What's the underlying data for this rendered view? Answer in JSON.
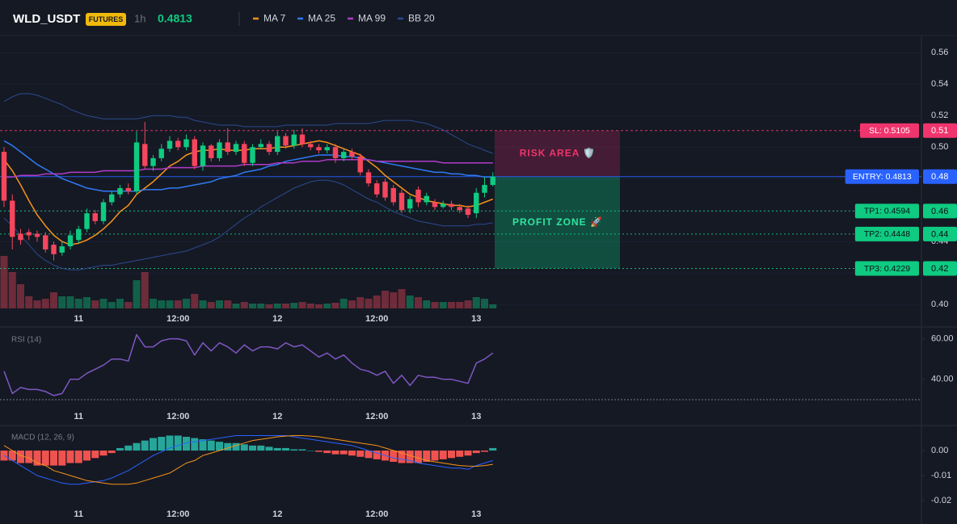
{
  "chart_data": [
    {
      "type": "candlestick",
      "title": "WLD_USDT",
      "badge": "FUTURES",
      "interval": "1h",
      "last_price": 0.4813,
      "categories": [
        null,
        null,
        null,
        null,
        null,
        null,
        null,
        null,
        null,
        "11",
        null,
        null,
        null,
        null,
        null,
        null,
        null,
        null,
        null,
        null,
        null,
        "12:00",
        null,
        null,
        null,
        null,
        null,
        null,
        null,
        null,
        null,
        null,
        null,
        "12",
        null,
        null,
        null,
        null,
        null,
        null,
        null,
        null,
        null,
        null,
        null,
        "12:00",
        null,
        null,
        null,
        null,
        null,
        null,
        null,
        null,
        null,
        null,
        null,
        "13",
        null,
        null
      ],
      "open": [
        0.497,
        0.466,
        0.445,
        0.446,
        0.445,
        0.444,
        0.438,
        0.433,
        0.437,
        0.441,
        0.448,
        0.458,
        0.453,
        0.465,
        0.47,
        0.474,
        0.472,
        0.502,
        0.488,
        0.493,
        0.499,
        0.504,
        0.5,
        0.505,
        0.488,
        0.501,
        0.493,
        0.503,
        0.497,
        0.502,
        0.49,
        0.5,
        0.502,
        0.497,
        0.507,
        0.501,
        0.508,
        0.502,
        0.5,
        0.498,
        0.5,
        0.493,
        0.497,
        0.494,
        0.484,
        0.477,
        0.478,
        0.474,
        0.471,
        0.461,
        0.473,
        0.465,
        0.465,
        0.462,
        0.464,
        0.462,
        0.461,
        0.458,
        0.471,
        0.476
      ],
      "high": [
        0.5,
        0.47,
        0.448,
        0.448,
        0.447,
        0.446,
        0.44,
        0.44,
        0.447,
        0.45,
        0.461,
        0.46,
        0.467,
        0.472,
        0.476,
        0.477,
        0.51,
        0.516,
        0.495,
        0.502,
        0.507,
        0.506,
        0.508,
        0.507,
        0.503,
        0.502,
        0.505,
        0.512,
        0.504,
        0.504,
        0.502,
        0.505,
        0.504,
        0.51,
        0.509,
        0.511,
        0.512,
        0.504,
        0.502,
        0.502,
        0.502,
        0.499,
        0.499,
        0.496,
        0.486,
        0.479,
        0.48,
        0.476,
        0.473,
        0.469,
        0.475,
        0.471,
        0.467,
        0.466,
        0.466,
        0.464,
        0.463,
        0.474,
        0.481,
        0.484
      ],
      "low": [
        0.462,
        0.435,
        0.438,
        0.441,
        0.44,
        0.433,
        0.428,
        0.431,
        0.435,
        0.439,
        0.446,
        0.451,
        0.451,
        0.463,
        0.468,
        0.47,
        0.47,
        0.486,
        0.485,
        0.491,
        0.497,
        0.498,
        0.498,
        0.486,
        0.485,
        0.491,
        0.491,
        0.495,
        0.495,
        0.488,
        0.488,
        0.499,
        0.495,
        0.495,
        0.499,
        0.499,
        0.5,
        0.498,
        0.496,
        0.496,
        0.49,
        0.491,
        0.492,
        0.482,
        0.475,
        0.468,
        0.466,
        0.463,
        0.458,
        0.458,
        0.462,
        0.463,
        0.46,
        0.461,
        0.46,
        0.458,
        0.455,
        0.455,
        0.468,
        0.475
      ],
      "close": [
        0.466,
        0.443,
        0.441,
        0.444,
        0.443,
        0.435,
        0.432,
        0.437,
        0.444,
        0.448,
        0.458,
        0.453,
        0.465,
        0.47,
        0.474,
        0.472,
        0.503,
        0.488,
        0.493,
        0.499,
        0.504,
        0.5,
        0.505,
        0.488,
        0.501,
        0.493,
        0.503,
        0.497,
        0.502,
        0.49,
        0.5,
        0.502,
        0.497,
        0.507,
        0.501,
        0.508,
        0.502,
        0.5,
        0.498,
        0.5,
        0.493,
        0.497,
        0.494,
        0.484,
        0.477,
        0.47,
        0.468,
        0.465,
        0.46,
        0.467,
        0.465,
        0.469,
        0.462,
        0.464,
        0.462,
        0.46,
        0.457,
        0.471,
        0.476,
        0.4813
      ],
      "volume": [
        65,
        45,
        30,
        15,
        10,
        12,
        20,
        15,
        15,
        12,
        14,
        10,
        12,
        8,
        12,
        8,
        35,
        45,
        12,
        10,
        10,
        10,
        12,
        18,
        10,
        8,
        10,
        10,
        6,
        8,
        6,
        6,
        5,
        6,
        6,
        7,
        8,
        6,
        5,
        6,
        7,
        12,
        10,
        14,
        12,
        16,
        22,
        20,
        24,
        16,
        14,
        10,
        8,
        8,
        8,
        8,
        10,
        14,
        12,
        5
      ],
      "up_color": "#0ecb81",
      "down_color": "#f6465d",
      "overlays": [
        {
          "name": "MA 7",
          "color": "#f7931a",
          "values": [
            0.492,
            0.485,
            0.476,
            0.466,
            0.457,
            0.45,
            0.444,
            0.44,
            0.438,
            0.439,
            0.441,
            0.444,
            0.448,
            0.453,
            0.459,
            0.463,
            0.47,
            0.474,
            0.478,
            0.483,
            0.488,
            0.491,
            0.495,
            0.497,
            0.498,
            0.498,
            0.499,
            0.498,
            0.498,
            0.498,
            0.499,
            0.499,
            0.499,
            0.5,
            0.5,
            0.501,
            0.502,
            0.503,
            0.504,
            0.503,
            0.501,
            0.499,
            0.497,
            0.495,
            0.491,
            0.487,
            0.482,
            0.478,
            0.474,
            0.47,
            0.468,
            0.466,
            0.465,
            0.464,
            0.463,
            0.463,
            0.462,
            0.463,
            0.465,
            0.467
          ]
        },
        {
          "name": "MA 25",
          "color": "#2f7bf5",
          "values": [
            0.504,
            0.501,
            0.497,
            0.493,
            0.489,
            0.486,
            0.483,
            0.48,
            0.478,
            0.476,
            0.474,
            0.473,
            0.472,
            0.472,
            0.472,
            0.472,
            0.472,
            0.473,
            0.473,
            0.473,
            0.474,
            0.474,
            0.475,
            0.476,
            0.477,
            0.478,
            0.48,
            0.481,
            0.482,
            0.484,
            0.485,
            0.486,
            0.488,
            0.489,
            0.491,
            0.492,
            0.493,
            0.494,
            0.495,
            0.495,
            0.495,
            0.494,
            0.494,
            0.493,
            0.492,
            0.491,
            0.49,
            0.489,
            0.488,
            0.487,
            0.486,
            0.485,
            0.484,
            0.484,
            0.483,
            0.483,
            0.482,
            0.482,
            0.481,
            0.481
          ]
        },
        {
          "name": "MA 99",
          "color": "#b03cc8",
          "values": [
            0.481,
            0.481,
            0.482,
            0.482,
            0.482,
            0.483,
            0.483,
            0.483,
            0.484,
            0.484,
            0.484,
            0.484,
            0.485,
            0.485,
            0.485,
            0.485,
            0.485,
            0.486,
            0.486,
            0.486,
            0.487,
            0.487,
            0.487,
            0.487,
            0.488,
            0.488,
            0.488,
            0.488,
            0.488,
            0.489,
            0.489,
            0.489,
            0.489,
            0.49,
            0.49,
            0.49,
            0.491,
            0.491,
            0.491,
            0.492,
            0.492,
            0.492,
            0.492,
            0.492,
            0.492,
            0.491,
            0.491,
            0.491,
            0.491,
            0.491,
            0.491,
            0.491,
            0.491,
            0.49,
            0.49,
            0.49,
            0.49,
            0.49,
            0.49,
            0.49
          ]
        },
        {
          "name": "BB 20",
          "color": "#2b4a8f",
          "upper": [
            0.529,
            0.532,
            0.534,
            0.534,
            0.533,
            0.531,
            0.529,
            0.527,
            0.524,
            0.522,
            0.52,
            0.519,
            0.518,
            0.518,
            0.518,
            0.518,
            0.518,
            0.519,
            0.52,
            0.52,
            0.52,
            0.519,
            0.519,
            0.517,
            0.516,
            0.515,
            0.514,
            0.514,
            0.514,
            0.513,
            0.513,
            0.513,
            0.513,
            0.513,
            0.514,
            0.514,
            0.514,
            0.514,
            0.514,
            0.514,
            0.515,
            0.515,
            0.515,
            0.515,
            0.515,
            0.516,
            0.517,
            0.517,
            0.517,
            0.517,
            0.516,
            0.515,
            0.513,
            0.511,
            0.508,
            0.505,
            0.502,
            0.5,
            0.498,
            0.496
          ],
          "lower": [
            0.455,
            0.45,
            0.444,
            0.438,
            0.432,
            0.428,
            0.425,
            0.423,
            0.422,
            0.422,
            0.423,
            0.424,
            0.425,
            0.425,
            0.426,
            0.427,
            0.428,
            0.429,
            0.43,
            0.431,
            0.432,
            0.433,
            0.434,
            0.436,
            0.438,
            0.44,
            0.443,
            0.447,
            0.451,
            0.455,
            0.458,
            0.462,
            0.465,
            0.468,
            0.471,
            0.474,
            0.476,
            0.478,
            0.479,
            0.479,
            0.478,
            0.476,
            0.473,
            0.47,
            0.467,
            0.465,
            0.462,
            0.459,
            0.457,
            0.455,
            0.453,
            0.452,
            0.451,
            0.45,
            0.45,
            0.45,
            0.45,
            0.451,
            0.451,
            0.452
          ]
        }
      ],
      "levels": [
        {
          "label": "SL: 0.5105",
          "value": 0.5105,
          "axis_label": "0.51",
          "color": "#f0356e",
          "style": "dashed"
        },
        {
          "label": "ENTRY: 0.4813",
          "value": 0.4813,
          "axis_label": "0.48",
          "color": "#2962ff",
          "style": "solid"
        },
        {
          "label": "TP1: 0.4594",
          "value": 0.4594,
          "axis_label": "0.46",
          "color": "#0ecb81",
          "style": "dotted"
        },
        {
          "label": "TP2: 0.4448",
          "value": 0.4448,
          "axis_label": "0.44",
          "color": "#0ecb81",
          "style": "dotted"
        },
        {
          "label": "TP3: 0.4229",
          "value": 0.4229,
          "axis_label": "0.42",
          "color": "#0ecb81",
          "style": "dotted"
        }
      ],
      "zones": [
        {
          "label": "RISK AREA 🛡️",
          "range": [
            0.5105,
            0.4813
          ],
          "color": "#b3265e",
          "text_color": "#f0356e"
        },
        {
          "label": "PROFIT ZONE 🚀",
          "range": [
            0.4813,
            0.4229
          ],
          "color": "#0ecb81",
          "text_color": "#2ee6a0"
        }
      ],
      "ylim": [
        0.396,
        0.5704
      ],
      "yticks": [
        {
          "value": 0.4,
          "label": "0.40"
        },
        0.42,
        0.44,
        0.46,
        0.48,
        {
          "value": 0.5,
          "label": "0.50"
        },
        0.52,
        0.54,
        0.56
      ],
      "grid": true
    },
    {
      "type": "line",
      "title": "RSI (14)",
      "color": "#7e57c2",
      "values": [
        44,
        33,
        36,
        35,
        35,
        34,
        32,
        33,
        40,
        40,
        43,
        45,
        47,
        50,
        50,
        49,
        62,
        56,
        56,
        59,
        60,
        60,
        59,
        52,
        58,
        54,
        58,
        56,
        53,
        57,
        54,
        56,
        56,
        55,
        58,
        56,
        57,
        54,
        51,
        53,
        50,
        52,
        48,
        45,
        44,
        42,
        44,
        38,
        42,
        37,
        42,
        41,
        41,
        40,
        40,
        39,
        38,
        48,
        50,
        53
      ],
      "hlines": [
        30
      ],
      "ylim": [
        26,
        65
      ],
      "yticks": [
        {
          "value": 40,
          "label": "40.00"
        },
        {
          "value": 60,
          "label": "60.00"
        }
      ]
    },
    {
      "type": "macd",
      "title": "MACD (12, 26, 9)",
      "histogram": [
        -0.004,
        -0.004,
        -0.005,
        -0.005,
        -0.006,
        -0.006,
        -0.006,
        -0.006,
        -0.005,
        -0.005,
        -0.004,
        -0.003,
        -0.002,
        -0.001,
        0.001,
        0.002,
        0.003,
        0.004,
        0.005,
        0.0055,
        0.006,
        0.006,
        0.0055,
        0.005,
        0.0045,
        0.004,
        0.0035,
        0.003,
        0.003,
        0.0025,
        0.002,
        0.002,
        0.0015,
        0.001,
        0.001,
        0.0005,
        0.0005,
        0,
        -0.0005,
        -0.001,
        -0.0015,
        -0.0015,
        -0.002,
        -0.0025,
        -0.003,
        -0.0035,
        -0.004,
        -0.0045,
        -0.005,
        -0.005,
        -0.005,
        -0.0045,
        -0.004,
        -0.0035,
        -0.003,
        -0.0025,
        -0.002,
        -0.001,
        -0.0005,
        0.001
      ],
      "macd": [
        -0.002,
        -0.004,
        -0.006,
        -0.008,
        -0.01,
        -0.011,
        -0.012,
        -0.013,
        -0.0135,
        -0.0135,
        -0.013,
        -0.0125,
        -0.012,
        -0.011,
        -0.0095,
        -0.008,
        -0.006,
        -0.004,
        -0.002,
        -0.0005,
        0.001,
        0.002,
        0.003,
        0.0035,
        0.004,
        0.0045,
        0.005,
        0.0055,
        0.006,
        0.006,
        0.006,
        0.006,
        0.006,
        0.006,
        0.006,
        0.0055,
        0.005,
        0.0045,
        0.004,
        0.0035,
        0.003,
        0.0025,
        0.002,
        0.001,
        0,
        -0.001,
        -0.002,
        -0.003,
        -0.0035,
        -0.004,
        -0.005,
        -0.0055,
        -0.006,
        -0.0065,
        -0.007,
        -0.007,
        -0.0075,
        -0.006,
        -0.005,
        -0.004
      ],
      "signal": [
        0.002,
        0,
        -0.002,
        -0.003,
        -0.005,
        -0.006,
        -0.008,
        -0.009,
        -0.01,
        -0.011,
        -0.012,
        -0.0125,
        -0.013,
        -0.0135,
        -0.0135,
        -0.0135,
        -0.013,
        -0.012,
        -0.011,
        -0.01,
        -0.009,
        -0.007,
        -0.005,
        -0.004,
        -0.002,
        -0.001,
        0,
        0.001,
        0.002,
        0.003,
        0.004,
        0.0045,
        0.005,
        0.0055,
        0.0058,
        0.006,
        0.006,
        0.0058,
        0.0055,
        0.005,
        0.0045,
        0.004,
        0.0035,
        0.003,
        0.0025,
        0.002,
        0.001,
        0,
        -0.001,
        -0.002,
        -0.003,
        -0.004,
        -0.0045,
        -0.005,
        -0.0055,
        -0.006,
        -0.0062,
        -0.0063,
        -0.006,
        -0.0055
      ],
      "macd_color": "#2962ff",
      "signal_color": "#f7931a",
      "up_color": "#26a69a",
      "down_color": "#ef5350",
      "ylim": [
        -0.0226,
        0.0097
      ],
      "yticks": [
        {
          "value": -0.02,
          "label": "-0.02"
        },
        {
          "value": -0.01,
          "label": "-0.01"
        },
        {
          "value": 0,
          "label": "0.00"
        }
      ]
    }
  ]
}
